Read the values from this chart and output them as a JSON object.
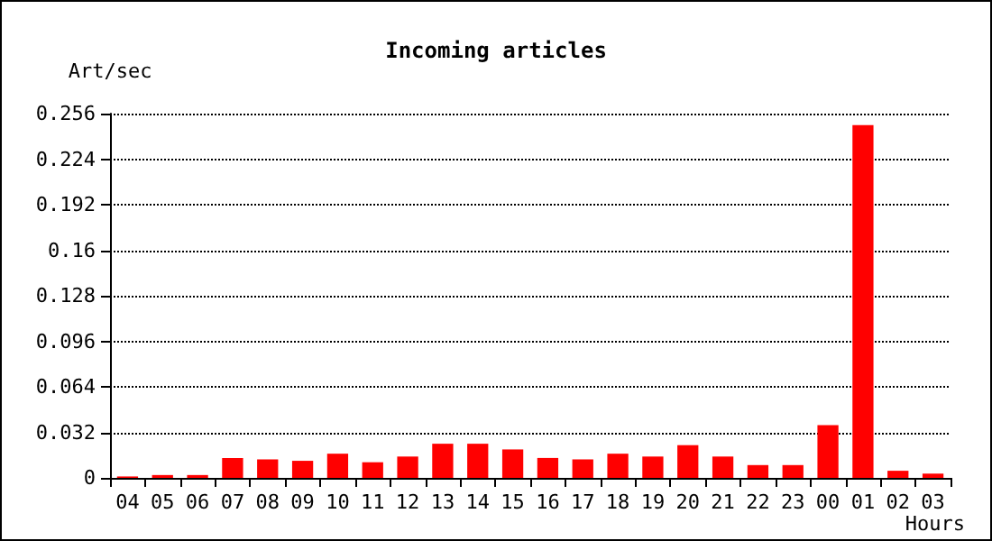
{
  "chart_data": {
    "type": "bar",
    "title": "Incoming articles",
    "xlabel": "Hours",
    "ylabel": "Art/sec",
    "categories": [
      "04",
      "05",
      "06",
      "07",
      "08",
      "09",
      "10",
      "11",
      "12",
      "13",
      "14",
      "15",
      "16",
      "17",
      "18",
      "19",
      "20",
      "21",
      "22",
      "23",
      "00",
      "01",
      "02",
      "03"
    ],
    "values": [
      0.001,
      0.002,
      0.002,
      0.014,
      0.013,
      0.012,
      0.017,
      0.011,
      0.015,
      0.024,
      0.024,
      0.02,
      0.014,
      0.013,
      0.017,
      0.015,
      0.023,
      0.015,
      0.009,
      0.009,
      0.037,
      0.248,
      0.005,
      0.003
    ],
    "color": "#ff0000",
    "ylim": [
      0,
      0.256
    ],
    "yticks": [
      0,
      0.032,
      0.064,
      0.096,
      0.128,
      0.16,
      0.192,
      0.224,
      0.256
    ],
    "grid": "y"
  }
}
